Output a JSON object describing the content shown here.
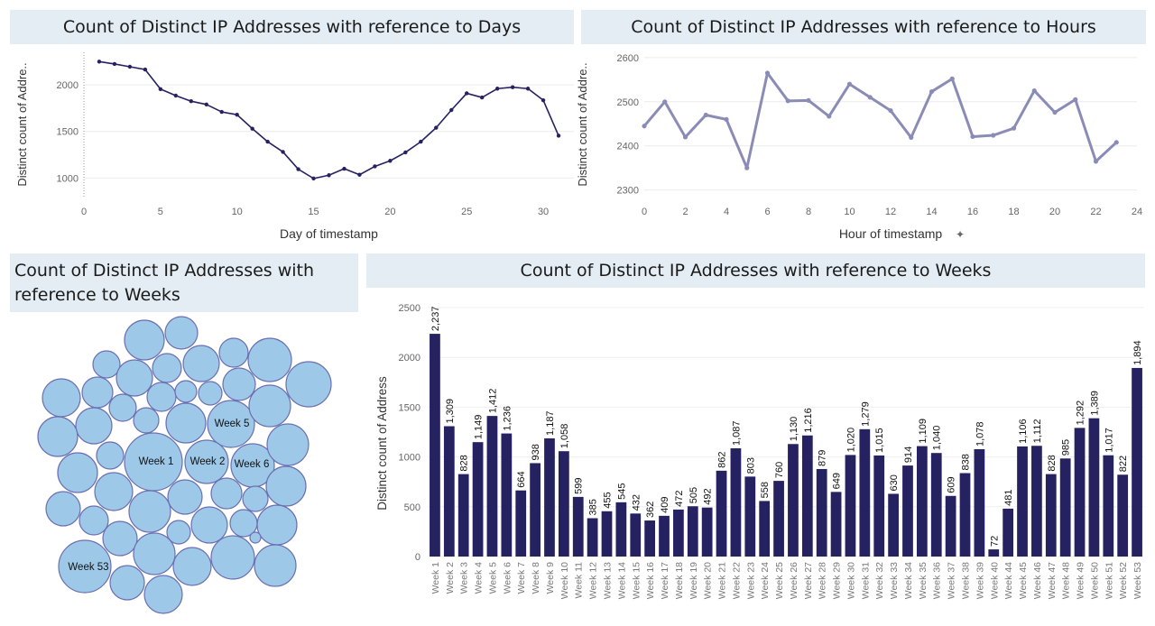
{
  "charts": {
    "days": {
      "title": "Count of Distinct IP Addresses with reference to Days",
      "xlabel": "Day of timestamp",
      "ylabel": "Distinct count of Addre..",
      "ylabel_trimmed": true
    },
    "hours": {
      "title": "Count of Distinct IP Addresses with reference to Hours",
      "xlabel": "Hour of timestamp",
      "ylabel": "Distinct count of Addre..",
      "ylabel_trimmed": true
    },
    "bubbles": {
      "title_line1": "Count of Distinct IP Addresses with",
      "title_line2": "reference to Weeks"
    },
    "weeks": {
      "title": "Count of Distinct IP Addresses with reference to Weeks",
      "ylabel": "Distinct count of Address"
    }
  },
  "chart_data": [
    {
      "type": "line",
      "title": "Count of Distinct IP Addresses with reference to Days",
      "xlabel": "Day of timestamp",
      "ylabel": "Distinct count of Addre..",
      "x": [
        1,
        2,
        3,
        4,
        5,
        6,
        7,
        8,
        9,
        10,
        11,
        12,
        13,
        14,
        15,
        16,
        17,
        18,
        19,
        20,
        21,
        22,
        23,
        24,
        25,
        26,
        27,
        28,
        29,
        30,
        31
      ],
      "y": [
        2250,
        2225,
        2195,
        2165,
        1955,
        1885,
        1825,
        1790,
        1710,
        1680,
        1530,
        1390,
        1280,
        1095,
        995,
        1030,
        1100,
        1035,
        1125,
        1185,
        1275,
        1390,
        1540,
        1730,
        1910,
        1865,
        1960,
        1975,
        1960,
        1835,
        1455
      ],
      "xlim": [
        0,
        32
      ],
      "ylim": [
        800,
        2350
      ],
      "xticks": [
        0,
        5,
        10,
        15,
        20,
        25,
        30
      ],
      "yticks": [
        1000,
        1500,
        2000
      ],
      "color": "#262262",
      "grid": true
    },
    {
      "type": "line",
      "title": "Count of Distinct IP Addresses with reference to Hours",
      "xlabel": "Hour of timestamp",
      "ylabel": "Distinct count of Addre..",
      "x": [
        0,
        1,
        2,
        3,
        4,
        5,
        6,
        7,
        8,
        9,
        10,
        11,
        12,
        13,
        14,
        15,
        16,
        17,
        18,
        19,
        20,
        21,
        22,
        23
      ],
      "y": [
        2445,
        2500,
        2420,
        2470,
        2460,
        2350,
        2565,
        2502,
        2503,
        2467,
        2540,
        2510,
        2480,
        2419,
        2523,
        2552,
        2421,
        2424,
        2440,
        2525,
        2476,
        2505,
        2365,
        2408
      ],
      "xlim": [
        0,
        24
      ],
      "ylim": [
        2285,
        2612
      ],
      "xticks": [
        0,
        2,
        4,
        6,
        8,
        10,
        12,
        14,
        16,
        18,
        20,
        22,
        24
      ],
      "yticks": [
        2300,
        2400,
        2500,
        2600
      ],
      "color": "#8a8cb6",
      "grid": true
    },
    {
      "type": "bubble",
      "title": "Count of Distinct IP Addresses with reference to Weeks",
      "labels": [
        "Week 1",
        "Week 2",
        "Week 6",
        "Week 5",
        "Week 53"
      ],
      "color": "#9ec8e8",
      "stroke": "#6b6fb0"
    },
    {
      "type": "bar",
      "title": "Count of Distinct IP Addresses with reference to Weeks",
      "ylabel": "Distinct count of Address",
      "categories": [
        "Week 1",
        "Week 2",
        "Week 3",
        "Week 4",
        "Week 5",
        "Week 6",
        "Week 7",
        "Week 8",
        "Week 9",
        "Week 10",
        "Week 11",
        "Week 12",
        "Week 13",
        "Week 14",
        "Week 15",
        "Week 16",
        "Week 17",
        "Week 18",
        "Week 19",
        "Week 20",
        "Week 21",
        "Week 22",
        "Week 23",
        "Week 24",
        "Week 25",
        "Week 26",
        "Week 27",
        "Week 28",
        "Week 29",
        "Week 30",
        "Week 31",
        "Week 32",
        "Week 33",
        "Week 34",
        "Week 35",
        "Week 36",
        "Week 37",
        "Week 38",
        "Week 39",
        "Week 40",
        "Week 44",
        "Week 45",
        "Week 46",
        "Week 47",
        "Week 48",
        "Week 49",
        "Week 50",
        "Week 51",
        "Week 52",
        "Week 53"
      ],
      "values": [
        2237,
        1309,
        828,
        1149,
        1412,
        1236,
        664,
        938,
        1187,
        1058,
        599,
        385,
        455,
        545,
        432,
        362,
        409,
        472,
        505,
        492,
        862,
        1087,
        803,
        558,
        760,
        1130,
        1216,
        879,
        649,
        1020,
        1279,
        1015,
        630,
        914,
        1109,
        1040,
        609,
        838,
        1078,
        72,
        481,
        1106,
        1112,
        828,
        985,
        1292,
        1389,
        1017,
        822,
        1894
      ],
      "data_labels": [
        "2,237",
        "1,309",
        "828",
        "1,149",
        "1,412",
        "1,236",
        "664",
        "938",
        "1,187",
        "1,058",
        "599",
        "385",
        "455",
        "545",
        "432",
        "362",
        "409",
        "472",
        "505",
        "492",
        "862",
        "1,087",
        "803",
        "558",
        "760",
        "1,130",
        "1,216",
        "879",
        "649",
        "1,020",
        "1,279",
        "1,015",
        "630",
        "914",
        "1,109",
        "1,040",
        "609",
        "838",
        "1,078",
        "72",
        "481",
        "1,106",
        "1,112",
        "828",
        "985",
        "1,292",
        "1,389",
        "1,017",
        "822",
        "1,894"
      ],
      "ylim": [
        0,
        2600
      ],
      "yticks": [
        0,
        500,
        1000,
        1500,
        2000,
        2500
      ],
      "color": "#262262",
      "grid": true
    }
  ]
}
